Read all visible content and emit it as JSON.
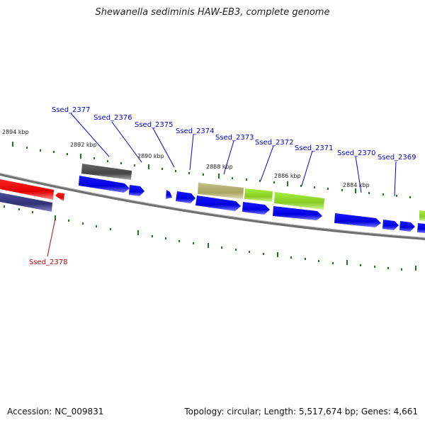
{
  "title": "Shewanella sediminis HAW-EB3, complete genome",
  "footer": {
    "accession": "Accession: NC_009831",
    "summary": "Topology: circular; Length: 5,517,674 bp; Genes: 4,661"
  },
  "colors": {
    "label_blue": "#0000cc",
    "label_red": "#cc0000",
    "tick_green": "#1a7a1a",
    "gene_blue": "#0000ee",
    "gene_red": "#ee0000",
    "gene_navy": "#3a3a8a",
    "gene_gray": "#555555",
    "gene_olive": "#b5b070",
    "gene_lime": "#99dd33",
    "backbone": "#777777"
  },
  "kbp_labels": [
    "2894 kbp",
    "2892 kbp",
    "2890 kbp",
    "2888 kbp",
    "2886 kbp",
    "2884 kbp"
  ],
  "gene_labels": [
    {
      "text": "Ssed_2377",
      "color": "blue"
    },
    {
      "text": "Ssed_2376",
      "color": "blue"
    },
    {
      "text": "Ssed_2375",
      "color": "blue"
    },
    {
      "text": "Ssed_2374",
      "color": "blue"
    },
    {
      "text": "Ssed_2373",
      "color": "blue"
    },
    {
      "text": "Ssed_2372",
      "color": "blue"
    },
    {
      "text": "Ssed_2371",
      "color": "blue"
    },
    {
      "text": "Ssed_2370",
      "color": "blue"
    },
    {
      "text": "Ssed_2369",
      "color": "blue"
    },
    {
      "text": "Ssed_2378",
      "color": "red"
    }
  ]
}
